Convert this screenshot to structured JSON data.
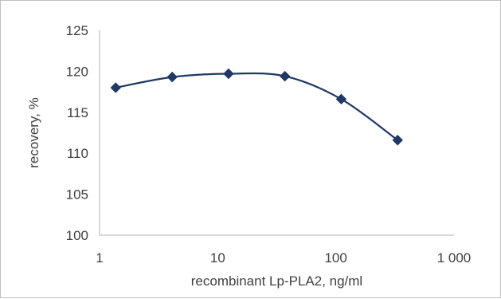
{
  "chart_data": {
    "type": "line",
    "xscale": "log",
    "x": [
      1.37,
      4.12,
      12.35,
      37.04,
      111.11,
      333.33
    ],
    "series": [
      {
        "values": [
          118.0,
          119.3,
          119.7,
          119.4,
          116.6,
          111.6
        ],
        "marker": "diamond",
        "color": "#1f3864",
        "smooth": true
      }
    ],
    "xlabel": "recombinant Lp-PLA2, ng/ml",
    "ylabel": "recovery, %",
    "xlim": [
      1,
      1000
    ],
    "ylim": [
      100,
      125
    ],
    "x_ticks": [
      {
        "value": 1,
        "label": "1"
      },
      {
        "value": 10,
        "label": "10"
      },
      {
        "value": 100,
        "label": "100"
      },
      {
        "value": 1000,
        "label": "1 000"
      }
    ],
    "y_ticks": [
      {
        "value": 100,
        "label": "100"
      },
      {
        "value": 105,
        "label": "105"
      },
      {
        "value": 110,
        "label": "110"
      },
      {
        "value": 115,
        "label": "115"
      },
      {
        "value": 120,
        "label": "120"
      },
      {
        "value": 125,
        "label": "125"
      }
    ],
    "grid": false,
    "legend": "none"
  }
}
